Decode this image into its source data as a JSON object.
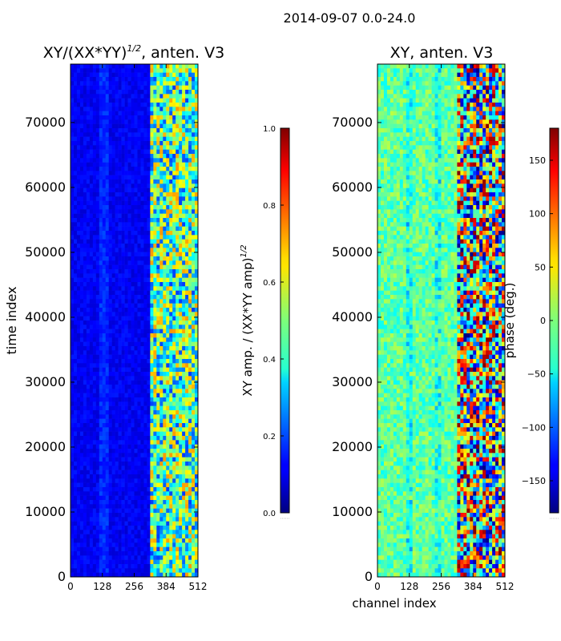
{
  "suptitle": "2014-09-07 0.0-24.0",
  "chart_data": [
    {
      "type": "heatmap",
      "title": "XY/(XX*YY)",
      "title_exponent": "1/2",
      "title_suffix": ", anten. V3",
      "xlabel": "",
      "ylabel": "time index",
      "xlim": [
        0,
        512
      ],
      "ylim": [
        0,
        79000
      ],
      "xticks": [
        "0",
        "128",
        "256",
        "384",
        "512"
      ],
      "yticks": [
        "0",
        "10000",
        "20000",
        "30000",
        "40000",
        "50000",
        "60000",
        "70000"
      ],
      "colormap": "jet",
      "colorbar": {
        "label": "XY amp. / (XX*YY amp)",
        "label_exponent": "1/2",
        "range": [
          0.0,
          1.0
        ],
        "ticks": [
          "0.0",
          "0.2",
          "0.4",
          "0.6",
          "0.8",
          "1.0"
        ]
      }
    },
    {
      "type": "heatmap",
      "title": "XY, anten. V3",
      "xlabel": "channel index",
      "ylabel": "",
      "xlim": [
        0,
        512
      ],
      "ylim": [
        0,
        79000
      ],
      "xticks": [
        "0",
        "128",
        "256",
        "384",
        "512"
      ],
      "yticks": [
        "0",
        "10000",
        "20000",
        "30000",
        "40000",
        "50000",
        "60000",
        "70000"
      ],
      "colormap": "jet",
      "colorbar": {
        "label": "phase (deg.)",
        "range": [
          -180,
          180
        ],
        "ticks": [
          "−150",
          "−100",
          "−50",
          "0",
          "50",
          "100",
          "150"
        ]
      }
    }
  ]
}
